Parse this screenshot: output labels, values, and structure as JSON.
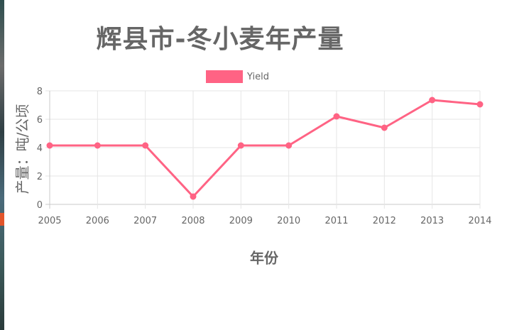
{
  "chart_data": {
    "type": "line",
    "title": "辉县市-冬小麦年产量",
    "xlabel": "年份",
    "ylabel": "产量：吨/公顷",
    "categories": [
      "2005",
      "2006",
      "2007",
      "2008",
      "2009",
      "2010",
      "2011",
      "2012",
      "2013",
      "2014"
    ],
    "series": [
      {
        "name": "Yield",
        "color": "#ff6384",
        "values": [
          4.15,
          4.15,
          4.15,
          0.55,
          4.15,
          4.15,
          6.2,
          5.4,
          7.35,
          7.05
        ]
      }
    ],
    "ylim": [
      0,
      8
    ],
    "yticks": [
      "0",
      "2",
      "4",
      "6",
      "8"
    ],
    "grid": true,
    "legend_position": "top"
  }
}
